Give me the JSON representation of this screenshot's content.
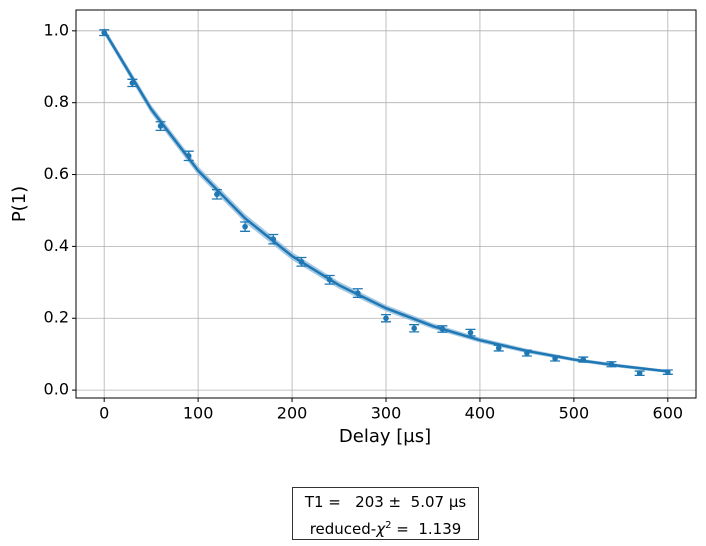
{
  "chart_data": {
    "type": "scatter",
    "xlabel": "Delay [µs]",
    "ylabel": "P(1)",
    "x": [
      0,
      30,
      60,
      90,
      120,
      150,
      180,
      210,
      240,
      270,
      300,
      330,
      360,
      390,
      420,
      450,
      480,
      510,
      540,
      570,
      600
    ],
    "series": [
      {
        "color": "#1f77b4",
        "values": [
          0.995,
          0.855,
          0.735,
          0.652,
          0.545,
          0.455,
          0.42,
          0.357,
          0.307,
          0.27,
          0.2,
          0.172,
          0.17,
          0.16,
          0.117,
          0.103,
          0.088,
          0.085,
          0.072,
          0.047,
          0.05
        ],
        "errors": [
          0.008,
          0.01,
          0.012,
          0.013,
          0.013,
          0.013,
          0.013,
          0.012,
          0.012,
          0.012,
          0.01,
          0.01,
          0.009,
          0.009,
          0.008,
          0.008,
          0.007,
          0.007,
          0.007,
          0.006,
          0.006
        ]
      }
    ],
    "fit": {
      "color": "#1f77b4",
      "band_color": "#8fbbdc",
      "x": [
        0,
        50,
        100,
        150,
        200,
        250,
        300,
        350,
        400,
        450,
        500,
        550,
        600
      ],
      "values": [
        1.0,
        0.782,
        0.611,
        0.478,
        0.373,
        0.292,
        0.228,
        0.178,
        0.139,
        0.109,
        0.085,
        0.067,
        0.052
      ],
      "lower": [
        0.99,
        0.77,
        0.599,
        0.466,
        0.362,
        0.282,
        0.219,
        0.17,
        0.132,
        0.103,
        0.08,
        0.062,
        0.048
      ],
      "upper": [
        1.01,
        0.794,
        0.623,
        0.49,
        0.384,
        0.302,
        0.237,
        0.186,
        0.146,
        0.115,
        0.09,
        0.072,
        0.056
      ]
    },
    "xlim": [
      -30,
      630
    ],
    "ylim": [
      -0.022,
      1.058
    ],
    "xticks": [
      0,
      100,
      200,
      300,
      400,
      500,
      600
    ],
    "yticks": [
      {
        "value": 0,
        "label": "0.0"
      },
      0.2,
      0.4,
      0.6,
      0.8,
      {
        "value": 1,
        "label": "1.0"
      }
    ],
    "grid": true,
    "annotation": {
      "line1": "T1 =   203 ±  5.07 µs",
      "line2_prefix": "reduced-",
      "line2_symbol": "χ",
      "line2_sup": "2",
      "line2_suffix": " =  1.139"
    }
  }
}
